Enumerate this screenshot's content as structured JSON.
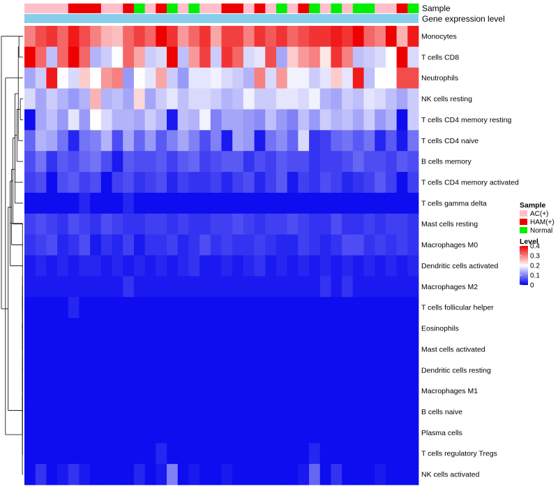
{
  "chart_data": {
    "type": "heatmap",
    "title": "",
    "annotation_tracks": [
      "Sample",
      "Gene expression level"
    ],
    "sample_groups": [
      "AC(+)",
      "HAM(+)",
      "Normal"
    ],
    "sample_group_colors": {
      "AC(+)": "#FFC0CB",
      "HAM(+)": "#EE0000",
      "Normal": "#00EE00"
    },
    "gene_expression_track_color": "#87CEEB",
    "column_groups": [
      "AC(+)",
      "AC(+)",
      "AC(+)",
      "AC(+)",
      "HAM(+)",
      "HAM(+)",
      "HAM(+)",
      "AC(+)",
      "AC(+)",
      "HAM(+)",
      "Normal",
      "AC(+)",
      "HAM(+)",
      "Normal",
      "AC(+)",
      "Normal",
      "AC(+)",
      "AC(+)",
      "HAM(+)",
      "HAM(+)",
      "AC(+)",
      "HAM(+)",
      "AC(+)",
      "Normal",
      "AC(+)",
      "HAM(+)",
      "Normal",
      "AC(+)",
      "Normal",
      "AC(+)",
      "Normal",
      "Normal",
      "AC(+)",
      "AC(+)",
      "HAM(+)",
      "Normal"
    ],
    "rows": [
      "Monocytes",
      "T cells CD8",
      "Neutrophils",
      "NK cells resting",
      "T cells CD4 memory resting",
      "T cells CD4 naive",
      "B cells memory",
      "T cells CD4 memory activated",
      "T cells gamma delta",
      "Mast cells resting",
      "Macrophages M0",
      "Dendritic cells activated",
      "Macrophages M2",
      "T cells follicular helper",
      "Eosinophils",
      "Mast cells activated",
      "Dendritic cells resting",
      "Macrophages M1",
      "B cells naive",
      "Plasma cells",
      "T cells regulatory  Tregs",
      "NK cells activated"
    ],
    "values": [
      [
        0.3,
        0.34,
        0.36,
        0.32,
        0.38,
        0.34,
        0.3,
        0.26,
        0.25,
        0.32,
        0.35,
        0.32,
        0.4,
        0.36,
        0.28,
        0.32,
        0.36,
        0.27,
        0.35,
        0.35,
        0.3,
        0.36,
        0.33,
        0.36,
        0.32,
        0.34,
        0.36,
        0.36,
        0.38,
        0.36,
        0.4,
        0.32,
        0.3,
        0.4,
        0.26,
        0.38
      ],
      [
        0.4,
        0.32,
        0.15,
        0.32,
        0.4,
        0.32,
        0.14,
        0.16,
        0.2,
        0.32,
        0.27,
        0.16,
        0.17,
        0.4,
        0.15,
        0.28,
        0.35,
        0.16,
        0.36,
        0.32,
        0.17,
        0.18,
        0.34,
        0.13,
        0.24,
        0.28,
        0.3,
        0.22,
        0.36,
        0.3,
        0.15,
        0.16,
        0.17,
        0.2,
        0.4,
        0.17
      ],
      [
        0.13,
        0.16,
        0.38,
        0.2,
        0.17,
        0.24,
        0.2,
        0.28,
        0.3,
        0.12,
        0.2,
        0.18,
        0.27,
        0.16,
        0.12,
        0.18,
        0.18,
        0.19,
        0.17,
        0.16,
        0.14,
        0.3,
        0.17,
        0.28,
        0.19,
        0.19,
        0.16,
        0.18,
        0.24,
        0.18,
        0.38,
        0.15,
        0.2,
        0.2,
        0.34,
        0.34
      ],
      [
        0.17,
        0.13,
        0.16,
        0.14,
        0.12,
        0.14,
        0.26,
        0.14,
        0.15,
        0.13,
        0.23,
        0.13,
        0.16,
        0.18,
        0.15,
        0.17,
        0.17,
        0.16,
        0.14,
        0.15,
        0.19,
        0.16,
        0.16,
        0.18,
        0.18,
        0.17,
        0.19,
        0.14,
        0.13,
        0.16,
        0.15,
        0.18,
        0.17,
        0.15,
        0.13,
        0.16
      ],
      [
        0.01,
        0.13,
        0.15,
        0.12,
        0.18,
        0.12,
        0.2,
        0.17,
        0.14,
        0.14,
        0.13,
        0.16,
        0.14,
        0.02,
        0.15,
        0.14,
        0.19,
        0.1,
        0.13,
        0.13,
        0.12,
        0.11,
        0.15,
        0.12,
        0.1,
        0.15,
        0.12,
        0.16,
        0.14,
        0.15,
        0.13,
        0.16,
        0.12,
        0.14,
        0.01,
        0.16
      ],
      [
        0.08,
        0.14,
        0.13,
        0.09,
        0.03,
        0.09,
        0.1,
        0.14,
        0.06,
        0.13,
        0.08,
        0.12,
        0.07,
        0.1,
        0.13,
        0.1,
        0.06,
        0.1,
        0.02,
        0.13,
        0.12,
        0.02,
        0.09,
        0.11,
        0.08,
        0.17,
        0.04,
        0.05,
        0.08,
        0.09,
        0.07,
        0.09,
        0.03,
        0.07,
        0.02,
        0.09
      ],
      [
        0.06,
        0.09,
        0.04,
        0.07,
        0.06,
        0.08,
        0.09,
        0.06,
        0.02,
        0.07,
        0.06,
        0.06,
        0.07,
        0.05,
        0.07,
        0.08,
        0.05,
        0.06,
        0.07,
        0.07,
        0.04,
        0.06,
        0.05,
        0.07,
        0.06,
        0.06,
        0.04,
        0.05,
        0.05,
        0.06,
        0.08,
        0.06,
        0.06,
        0.05,
        0.07,
        0.06
      ],
      [
        0.05,
        0.06,
        0.01,
        0.06,
        0.07,
        0.05,
        0.06,
        0.01,
        0.05,
        0.06,
        0.04,
        0.05,
        0.06,
        0.03,
        0.05,
        0.04,
        0.04,
        0.05,
        0.03,
        0.05,
        0.06,
        0.03,
        0.05,
        0.07,
        0.02,
        0.05,
        0.04,
        0.06,
        0.05,
        0.03,
        0.04,
        0.05,
        0.07,
        0.05,
        0.01,
        0.05
      ],
      [
        0.01,
        0.01,
        0.01,
        0.01,
        0.01,
        0.03,
        0.01,
        0.01,
        0.01,
        0.03,
        0.01,
        0.01,
        0.01,
        0.01,
        0.01,
        0.01,
        0.01,
        0.01,
        0.01,
        0.01,
        0.01,
        0.01,
        0.01,
        0.01,
        0.01,
        0.01,
        0.01,
        0.01,
        0.01,
        0.01,
        0.01,
        0.01,
        0.01,
        0.01,
        0.01,
        0.01
      ],
      [
        0.05,
        0.06,
        0.05,
        0.04,
        0.06,
        0.05,
        0.04,
        0.06,
        0.05,
        0.04,
        0.04,
        0.05,
        0.05,
        0.04,
        0.05,
        0.04,
        0.04,
        0.05,
        0.05,
        0.06,
        0.05,
        0.04,
        0.05,
        0.05,
        0.06,
        0.05,
        0.04,
        0.04,
        0.06,
        0.04,
        0.04,
        0.05,
        0.04,
        0.05,
        0.05,
        0.04
      ],
      [
        0.04,
        0.05,
        0.06,
        0.03,
        0.04,
        0.06,
        0.02,
        0.04,
        0.03,
        0.05,
        0.02,
        0.04,
        0.04,
        0.05,
        0.03,
        0.04,
        0.06,
        0.04,
        0.05,
        0.04,
        0.04,
        0.05,
        0.04,
        0.03,
        0.03,
        0.05,
        0.04,
        0.03,
        0.04,
        0.06,
        0.06,
        0.04,
        0.05,
        0.04,
        0.05,
        0.04
      ],
      [
        0.02,
        0.03,
        0.02,
        0.03,
        0.02,
        0.03,
        0.03,
        0.02,
        0.03,
        0.02,
        0.03,
        0.02,
        0.03,
        0.02,
        0.03,
        0.04,
        0.02,
        0.02,
        0.03,
        0.02,
        0.03,
        0.04,
        0.02,
        0.03,
        0.02,
        0.03,
        0.02,
        0.03,
        0.02,
        0.03,
        0.02,
        0.03,
        0.02,
        0.03,
        0.02,
        0.03
      ],
      [
        0.02,
        0.02,
        0.02,
        0.02,
        0.02,
        0.02,
        0.02,
        0.02,
        0.02,
        0.04,
        0.02,
        0.02,
        0.02,
        0.02,
        0.02,
        0.02,
        0.02,
        0.02,
        0.02,
        0.02,
        0.02,
        0.02,
        0.02,
        0.02,
        0.02,
        0.02,
        0.02,
        0.04,
        0.02,
        0.04,
        0.02,
        0.02,
        0.02,
        0.02,
        0.02,
        0.02
      ],
      [
        0.01,
        0.01,
        0.01,
        0.01,
        0.03,
        0.01,
        0.01,
        0.01,
        0.01,
        0.01,
        0.01,
        0.01,
        0.01,
        0.01,
        0.01,
        0.01,
        0.01,
        0.01,
        0.01,
        0.01,
        0.01,
        0.01,
        0.01,
        0.01,
        0.01,
        0.01,
        0.01,
        0.01,
        0.01,
        0.01,
        0.01,
        0.01,
        0.01,
        0.01,
        0.01,
        0.01
      ],
      [
        0.01,
        0.01,
        0.01,
        0.01,
        0.01,
        0.01,
        0.01,
        0.01,
        0.01,
        0.01,
        0.01,
        0.01,
        0.01,
        0.01,
        0.01,
        0.01,
        0.01,
        0.01,
        0.01,
        0.01,
        0.01,
        0.01,
        0.01,
        0.01,
        0.01,
        0.01,
        0.01,
        0.01,
        0.01,
        0.01,
        0.01,
        0.01,
        0.01,
        0.01,
        0.01,
        0.01
      ],
      [
        0.01,
        0.01,
        0.01,
        0.01,
        0.01,
        0.01,
        0.01,
        0.01,
        0.01,
        0.01,
        0.01,
        0.01,
        0.01,
        0.01,
        0.01,
        0.01,
        0.01,
        0.01,
        0.01,
        0.01,
        0.01,
        0.01,
        0.01,
        0.01,
        0.01,
        0.01,
        0.01,
        0.01,
        0.01,
        0.01,
        0.01,
        0.01,
        0.01,
        0.01,
        0.01,
        0.01
      ],
      [
        0.01,
        0.01,
        0.01,
        0.01,
        0.01,
        0.01,
        0.01,
        0.01,
        0.01,
        0.01,
        0.01,
        0.01,
        0.01,
        0.01,
        0.01,
        0.01,
        0.01,
        0.01,
        0.01,
        0.01,
        0.01,
        0.01,
        0.01,
        0.01,
        0.01,
        0.01,
        0.01,
        0.01,
        0.01,
        0.01,
        0.01,
        0.01,
        0.01,
        0.01,
        0.01,
        0.01
      ],
      [
        0.01,
        0.01,
        0.01,
        0.01,
        0.01,
        0.01,
        0.01,
        0.01,
        0.01,
        0.01,
        0.01,
        0.01,
        0.01,
        0.01,
        0.01,
        0.01,
        0.01,
        0.01,
        0.01,
        0.01,
        0.01,
        0.01,
        0.01,
        0.01,
        0.01,
        0.01,
        0.01,
        0.01,
        0.01,
        0.01,
        0.01,
        0.01,
        0.01,
        0.01,
        0.01,
        0.01
      ],
      [
        0.01,
        0.01,
        0.01,
        0.01,
        0.01,
        0.01,
        0.01,
        0.01,
        0.01,
        0.01,
        0.01,
        0.01,
        0.01,
        0.01,
        0.01,
        0.01,
        0.01,
        0.01,
        0.01,
        0.01,
        0.01,
        0.01,
        0.01,
        0.01,
        0.01,
        0.01,
        0.01,
        0.01,
        0.01,
        0.01,
        0.01,
        0.01,
        0.01,
        0.01,
        0.01,
        0.01
      ],
      [
        0.01,
        0.01,
        0.01,
        0.01,
        0.01,
        0.01,
        0.01,
        0.01,
        0.01,
        0.01,
        0.01,
        0.01,
        0.01,
        0.01,
        0.01,
        0.01,
        0.01,
        0.01,
        0.01,
        0.01,
        0.01,
        0.01,
        0.01,
        0.01,
        0.01,
        0.01,
        0.01,
        0.01,
        0.01,
        0.01,
        0.01,
        0.01,
        0.01,
        0.01,
        0.01,
        0.01
      ],
      [
        0.01,
        0.01,
        0.01,
        0.01,
        0.01,
        0.01,
        0.01,
        0.01,
        0.01,
        0.01,
        0.01,
        0.01,
        0.03,
        0.01,
        0.01,
        0.01,
        0.01,
        0.01,
        0.01,
        0.01,
        0.01,
        0.01,
        0.01,
        0.01,
        0.01,
        0.01,
        0.03,
        0.01,
        0.01,
        0.01,
        0.01,
        0.01,
        0.01,
        0.01,
        0.01,
        0.01
      ],
      [
        0.01,
        0.04,
        0.01,
        0.02,
        0.04,
        0.02,
        0.01,
        0.01,
        0.01,
        0.01,
        0.03,
        0.01,
        0.02,
        0.1,
        0.01,
        0.02,
        0.01,
        0.01,
        0.02,
        0.01,
        0.01,
        0.01,
        0.01,
        0.01,
        0.01,
        0.02,
        0.08,
        0.01,
        0.04,
        0.01,
        0.01,
        0.01,
        0.02,
        0.01,
        0.01,
        0.01
      ]
    ],
    "color_scale": {
      "min": 0,
      "max": 0.4,
      "low": "#0000EE",
      "mid": "#FFFFFF",
      "high": "#EE0000",
      "midpoint": 0.2
    },
    "legend": {
      "sample_title": "Sample",
      "level_title": "Level",
      "ticks": [
        0.4,
        0.3,
        0.2,
        0.1,
        0
      ],
      "tick_labels": [
        "0.4",
        "0.3",
        "0.2",
        "0.1",
        "0"
      ]
    },
    "row_dendrogram": {
      "merges": [
        [
          0,
          1,
          0.03
        ],
        [
          3,
          4,
          0.02
        ],
        [
          22,
          5,
          0.035
        ],
        [
          23,
          6,
          0.045
        ],
        [
          24,
          7,
          0.06
        ],
        [
          25,
          8,
          0.06
        ],
        [
          26,
          9,
          0.075
        ],
        [
          27,
          10,
          0.085
        ],
        [
          28,
          11,
          0.095
        ],
        [
          12,
          13,
          0.004
        ],
        [
          30,
          14,
          0.004
        ],
        [
          31,
          15,
          0.004
        ],
        [
          32,
          16,
          0.004
        ],
        [
          33,
          17,
          0.004
        ],
        [
          34,
          18,
          0.004
        ],
        [
          35,
          19,
          0.004
        ],
        [
          36,
          20,
          0.004
        ],
        [
          37,
          21,
          0.005
        ],
        [
          29,
          38,
          0.11
        ],
        [
          2,
          39,
          0.13
        ],
        [
          40,
          0,
          0.16
        ]
      ]
    }
  }
}
